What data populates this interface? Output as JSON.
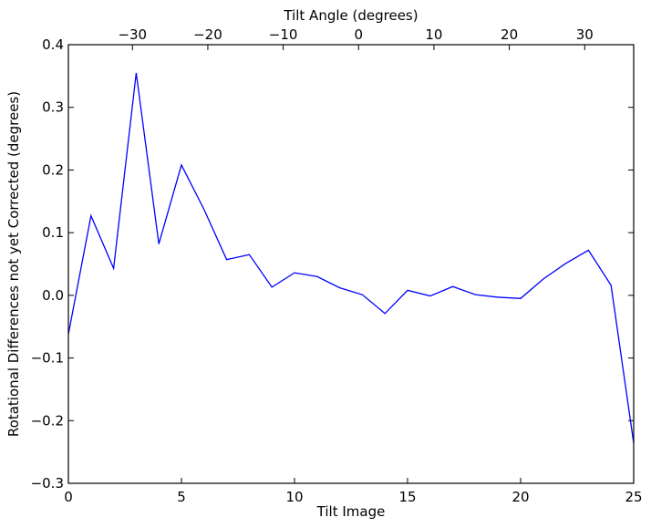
{
  "chart_data": {
    "type": "line",
    "xlabel": "Tilt Image",
    "ylabel": "Rotational Differences not yet Corrected (degrees)",
    "top_xlabel": "Tilt Angle (degrees)",
    "xlim": [
      0,
      25
    ],
    "ylim": [
      -0.3,
      0.4
    ],
    "top_xlim": [
      -38.5,
      36.5
    ],
    "x_ticks": [
      0,
      5,
      10,
      15,
      20,
      25
    ],
    "x_tick_labels": [
      "0",
      "5",
      "10",
      "15",
      "20",
      "25"
    ],
    "y_ticks": [
      -0.3,
      -0.2,
      -0.1,
      0.0,
      0.1,
      0.2,
      0.3,
      0.4
    ],
    "y_tick_labels": [
      "−0.3",
      "−0.2",
      "−0.1",
      "0.0",
      "0.1",
      "0.2",
      "0.3",
      "0.4"
    ],
    "top_x_ticks": [
      -30,
      -20,
      -10,
      0,
      10,
      20,
      30
    ],
    "top_x_tick_labels": [
      "−30",
      "−20",
      "−10",
      "0",
      "10",
      "20",
      "30"
    ],
    "grid": false,
    "line_color": "#0000ff",
    "series": [
      {
        "x": [
          0,
          1,
          2,
          3,
          4,
          5,
          6,
          7,
          8,
          9,
          10,
          11,
          12,
          13,
          14,
          15,
          16,
          17,
          18,
          19,
          20,
          21,
          22,
          23,
          24,
          25
        ],
        "values": [
          -0.062,
          0.127,
          0.043,
          0.355,
          0.082,
          0.208,
          0.137,
          0.057,
          0.065,
          0.013,
          0.036,
          0.03,
          0.012,
          0.001,
          -0.029,
          0.008,
          -0.001,
          0.014,
          0.001,
          -0.003,
          -0.005,
          0.026,
          0.051,
          0.072,
          0.016,
          -0.236
        ]
      }
    ]
  }
}
